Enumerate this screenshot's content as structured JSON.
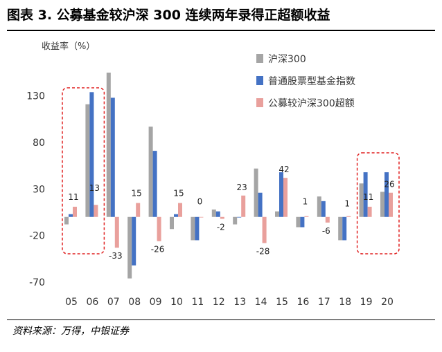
{
  "header": {
    "title": "图表 3. 公募基金较沪深 300 连续两年录得正超额收益"
  },
  "footer": {
    "source": "资料来源：万得，中银证券"
  },
  "chart_data": {
    "type": "bar",
    "ylabel": "收益率（%）",
    "ylim": [
      -70,
      155
    ],
    "yticks": [
      130,
      80,
      30,
      -20,
      -70
    ],
    "yticklabels": [
      "130",
      "80",
      "30",
      "-20",
      "-70"
    ],
    "categories": [
      "05",
      "06",
      "07",
      "08",
      "09",
      "10",
      "11",
      "12",
      "13",
      "14",
      "15",
      "16",
      "17",
      "18",
      "19",
      "20"
    ],
    "series": [
      {
        "name": "沪深300",
        "color": "#A5A5A5",
        "values": [
          -8,
          121,
          162,
          -66,
          97,
          -13,
          -25,
          8,
          -8,
          52,
          6,
          -11,
          22,
          -25,
          36,
          27
        ]
      },
      {
        "name": "普通股票型基金指数",
        "color": "#4472C4",
        "values": [
          3,
          134,
          128,
          -52,
          71,
          3,
          -25,
          6,
          0,
          26,
          48,
          -11,
          17,
          -25,
          48,
          48
        ]
      },
      {
        "name": "公募较沪深300超额",
        "color": "#E9A09C",
        "values": [
          11,
          13,
          -33,
          15,
          -26,
          15,
          0,
          -2,
          23,
          -28,
          42,
          1,
          -6,
          1,
          11,
          26
        ]
      }
    ],
    "data_labels": [
      "11",
      "13",
      "-33",
      "15",
      "-26",
      "15",
      "0",
      "-2",
      "23",
      "-28",
      "42",
      "1",
      "-6",
      "1",
      "11",
      "26"
    ],
    "highlight_groups": [
      [
        0,
        1
      ],
      [
        14,
        15
      ]
    ],
    "legend": "top-right"
  }
}
